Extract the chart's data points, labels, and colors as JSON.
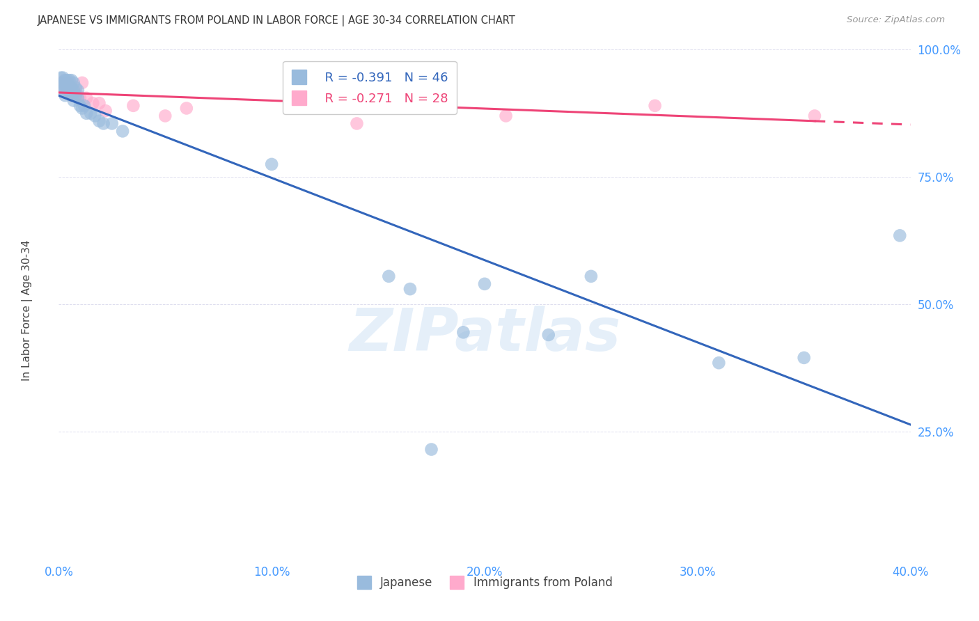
{
  "title": "JAPANESE VS IMMIGRANTS FROM POLAND IN LABOR FORCE | AGE 30-34 CORRELATION CHART",
  "source": "Source: ZipAtlas.com",
  "ylabel": "In Labor Force | Age 30-34",
  "xlim": [
    0.0,
    0.4
  ],
  "ylim": [
    0.0,
    1.0
  ],
  "xticks": [
    0.0,
    0.05,
    0.1,
    0.15,
    0.2,
    0.25,
    0.3,
    0.35,
    0.4
  ],
  "xticklabels": [
    "0.0%",
    "",
    "10.0%",
    "",
    "20.0%",
    "",
    "30.0%",
    "",
    "40.0%"
  ],
  "yticks": [
    0.0,
    0.25,
    0.5,
    0.75,
    1.0
  ],
  "yticklabels_right": [
    "",
    "25.0%",
    "50.0%",
    "75.0%",
    "100.0%"
  ],
  "legend_r_blue": "R = -0.391",
  "legend_n_blue": "N = 46",
  "legend_r_pink": "R = -0.271",
  "legend_n_pink": "N = 28",
  "legend_label_blue": "Japanese",
  "legend_label_pink": "Immigrants from Poland",
  "blue_scatter_color": "#99BBDD",
  "pink_scatter_color": "#FFAACC",
  "blue_line_color": "#3366BB",
  "pink_line_color": "#EE4477",
  "background_color": "#FFFFFF",
  "grid_color": "#DDDDEE",
  "title_color": "#333333",
  "axis_tick_color": "#4499FF",
  "watermark_text": "ZIPatlas",
  "watermark_color": "#AACCEE",
  "japanese_x": [
    0.001,
    0.001,
    0.002,
    0.002,
    0.002,
    0.003,
    0.003,
    0.003,
    0.003,
    0.004,
    0.004,
    0.004,
    0.005,
    0.005,
    0.005,
    0.006,
    0.006,
    0.006,
    0.007,
    0.007,
    0.007,
    0.008,
    0.008,
    0.009,
    0.009,
    0.01,
    0.011,
    0.012,
    0.013,
    0.015,
    0.017,
    0.019,
    0.021,
    0.025,
    0.03,
    0.1,
    0.155,
    0.165,
    0.2,
    0.23,
    0.25,
    0.31,
    0.35,
    0.175,
    0.19,
    0.395
  ],
  "japanese_y": [
    0.945,
    0.93,
    0.945,
    0.935,
    0.92,
    0.94,
    0.93,
    0.925,
    0.91,
    0.94,
    0.93,
    0.92,
    0.94,
    0.925,
    0.915,
    0.94,
    0.925,
    0.91,
    0.935,
    0.92,
    0.9,
    0.925,
    0.91,
    0.92,
    0.905,
    0.89,
    0.885,
    0.89,
    0.875,
    0.875,
    0.87,
    0.86,
    0.855,
    0.855,
    0.84,
    0.775,
    0.555,
    0.53,
    0.54,
    0.44,
    0.555,
    0.385,
    0.395,
    0.215,
    0.445,
    0.635
  ],
  "poland_x": [
    0.001,
    0.002,
    0.002,
    0.003,
    0.003,
    0.004,
    0.004,
    0.005,
    0.005,
    0.006,
    0.006,
    0.007,
    0.008,
    0.009,
    0.01,
    0.011,
    0.013,
    0.016,
    0.019,
    0.022,
    0.035,
    0.05,
    0.06,
    0.14,
    0.165,
    0.21,
    0.28,
    0.355
  ],
  "poland_y": [
    0.935,
    0.935,
    0.925,
    0.94,
    0.93,
    0.935,
    0.92,
    0.935,
    0.92,
    0.925,
    0.91,
    0.92,
    0.915,
    0.91,
    0.905,
    0.935,
    0.905,
    0.895,
    0.895,
    0.88,
    0.89,
    0.87,
    0.885,
    0.855,
    0.915,
    0.87,
    0.89,
    0.87
  ]
}
